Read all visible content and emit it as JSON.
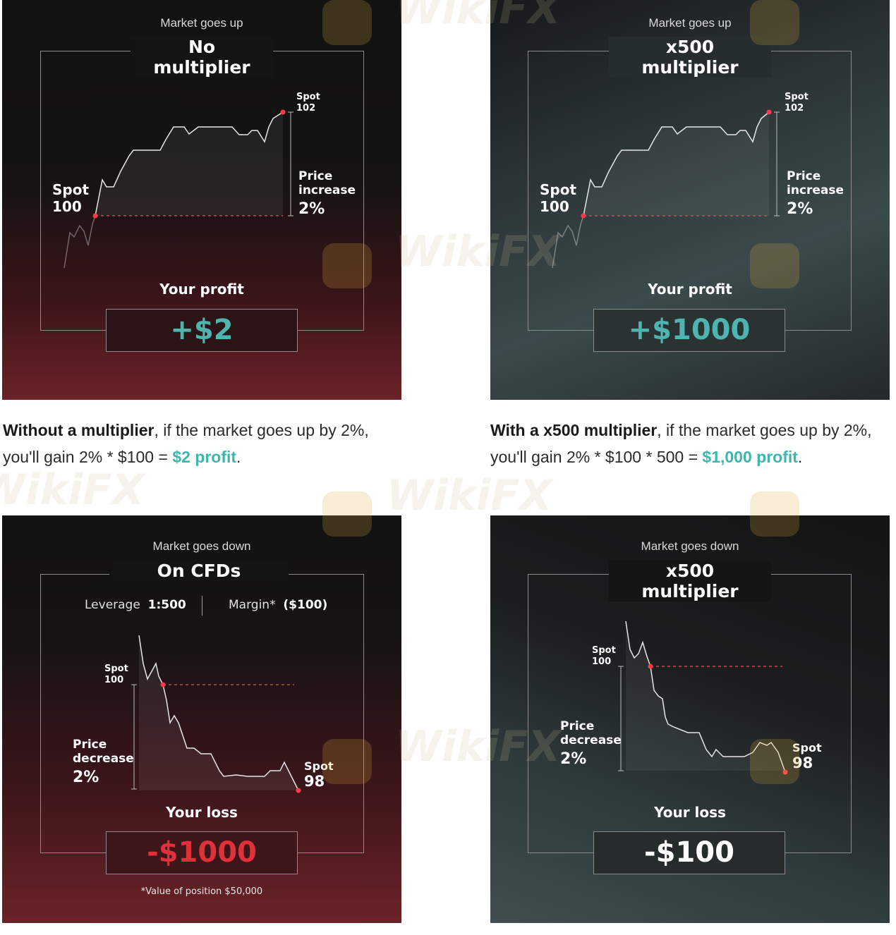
{
  "panels": [
    {
      "kicker": "Market goes up",
      "title": "No multiplier",
      "spot_start_word": "Spot",
      "spot_start_value": "100",
      "spot_end_word": "Spot",
      "spot_end_value": "102",
      "change_line1": "Price",
      "change_line2": "increase",
      "change_pct": "2%",
      "result_label": "Your profit",
      "result_value": "+$2"
    },
    {
      "kicker": "Market goes up",
      "title": "x500 multiplier",
      "spot_start_word": "Spot",
      "spot_start_value": "100",
      "spot_end_word": "Spot",
      "spot_end_value": "102",
      "change_line1": "Price",
      "change_line2": "increase",
      "change_pct": "2%",
      "result_label": "Your profit",
      "result_value": "+$1000"
    },
    {
      "kicker": "Market goes down",
      "title": "On CFDs",
      "leverage_label": "Leverage",
      "leverage_value": "1:500",
      "margin_label": "Margin*",
      "margin_value": "($100)",
      "spot_start_word": "Spot",
      "spot_start_value": "100",
      "spot_end_word": "Spot",
      "spot_end_value": "98",
      "change_line1": "Price",
      "change_line2": "decrease",
      "change_pct": "2%",
      "result_label": "Your loss",
      "result_value": "-$1000",
      "footnote": "*Value of position $50,000"
    },
    {
      "kicker": "Market goes down",
      "title": "x500 multiplier",
      "spot_start_word": "Spot",
      "spot_start_value": "100",
      "spot_end_word": "Spot",
      "spot_end_value": "98",
      "change_line1": "Price",
      "change_line2": "decrease",
      "change_pct": "2%",
      "result_label": "Your loss",
      "result_value": "-$100"
    }
  ],
  "captions": [
    {
      "bold": "Without a multiplier",
      "text": ", if the market goes up by 2%, you'll gain 2% * $100 = ",
      "highlight": "$2 profit",
      "end": "."
    },
    {
      "bold": "With a x500 multiplier",
      "text": ", if the market goes up by 2%, you'll gain 2% * $100 * 500 = ",
      "highlight": "$1,000 profit",
      "end": "."
    }
  ],
  "watermark": "WikiFX",
  "colors": {
    "profit": "#4fb4b0",
    "loss": "#e0303a",
    "spot_dot": "#ff3b47"
  }
}
